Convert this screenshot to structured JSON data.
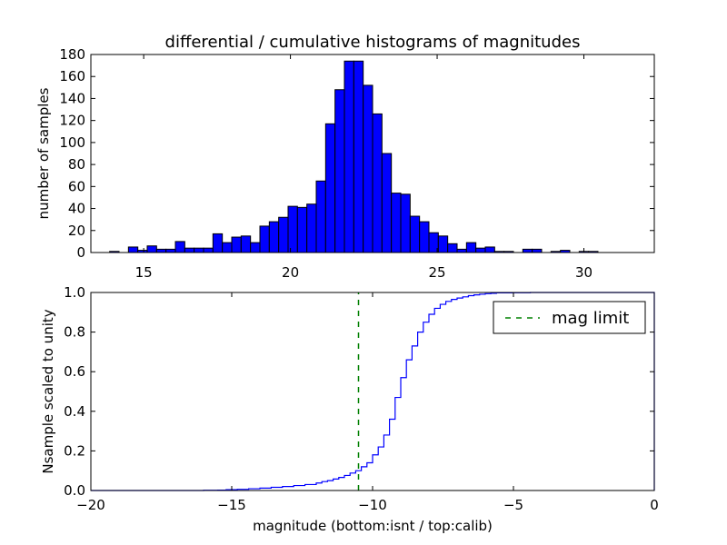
{
  "chart_data": [
    {
      "type": "bar",
      "title": "differential / cumulative histograms of magnitudes",
      "xlabel": "",
      "ylabel": "number of samples",
      "xlim": [
        13.2,
        32.4
      ],
      "ylim": [
        0,
        180
      ],
      "xticks": [
        "15",
        "20",
        "25",
        "30"
      ],
      "yticks": [
        "0",
        "20",
        "40",
        "60",
        "80",
        "100",
        "120",
        "140",
        "160",
        "180"
      ],
      "xtick_values": [
        15,
        20,
        25,
        30
      ],
      "ytick_values": [
        0,
        20,
        40,
        60,
        80,
        100,
        120,
        140,
        160,
        180
      ],
      "bin_start": 13.2,
      "bin_width": 0.32,
      "values": [
        0,
        0,
        1,
        0,
        5,
        2,
        6,
        3,
        3,
        10,
        4,
        4,
        4,
        17,
        9,
        14,
        15,
        9,
        24,
        28,
        32,
        42,
        41,
        44,
        65,
        117,
        148,
        174,
        174,
        152,
        126,
        90,
        54,
        53,
        33,
        28,
        18,
        15,
        8,
        3,
        9,
        4,
        5,
        1,
        1,
        0,
        3,
        3,
        0,
        1,
        2,
        0,
        1,
        1,
        0,
        0,
        0,
        0,
        0,
        0
      ],
      "bar_color": "#0000ff",
      "grid": false
    },
    {
      "type": "line",
      "title": "",
      "xlabel": "magnitude (bottom:isnt / top:calib)",
      "ylabel": "Nsample scaled to unity",
      "xlim": [
        -20,
        0
      ],
      "ylim": [
        0,
        1
      ],
      "xticks": [
        "−20",
        "−15",
        "−10",
        "−5",
        "0"
      ],
      "yticks": [
        "0.0",
        "0.2",
        "0.4",
        "0.6",
        "0.8",
        "1.0"
      ],
      "xtick_values": [
        -20,
        -15,
        -10,
        -5,
        0
      ],
      "ytick_values": [
        0,
        0.2,
        0.4,
        0.6,
        0.8,
        1.0
      ],
      "legend_position": "top-right",
      "grid": false,
      "series": [
        {
          "line_color": "#0000ff",
          "step": true,
          "x": [
            -20,
            -16,
            -15.5,
            -15.2,
            -14.8,
            -14.4,
            -14.0,
            -13.6,
            -13.2,
            -12.8,
            -12.4,
            -12.0,
            -11.8,
            -11.6,
            -11.4,
            -11.2,
            -11.0,
            -10.8,
            -10.6,
            -10.4,
            -10.2,
            -10.0,
            -9.8,
            -9.6,
            -9.4,
            -9.2,
            -9.0,
            -8.8,
            -8.6,
            -8.4,
            -8.2,
            -8.0,
            -7.8,
            -7.6,
            -7.4,
            -7.2,
            -7.0,
            -6.8,
            -6.6,
            -6.4,
            -6.2,
            -6.0,
            -5.8,
            -5.6,
            -5.0,
            -4.4,
            -4.0,
            -3.6
          ],
          "y": [
            0,
            0.001,
            0.002,
            0.004,
            0.006,
            0.009,
            0.012,
            0.016,
            0.02,
            0.025,
            0.03,
            0.038,
            0.045,
            0.05,
            0.058,
            0.066,
            0.076,
            0.088,
            0.1,
            0.12,
            0.14,
            0.18,
            0.22,
            0.28,
            0.36,
            0.47,
            0.57,
            0.66,
            0.73,
            0.8,
            0.85,
            0.89,
            0.92,
            0.94,
            0.955,
            0.965,
            0.972,
            0.978,
            0.984,
            0.988,
            0.991,
            0.994,
            0.996,
            0.998,
            0.999,
            1.0,
            1.0,
            1.0
          ]
        },
        {
          "name": "mag limit",
          "line_color": "#008000",
          "dashed": true,
          "x": [
            -10.5,
            -10.5
          ],
          "y": [
            0,
            1
          ]
        }
      ]
    }
  ]
}
